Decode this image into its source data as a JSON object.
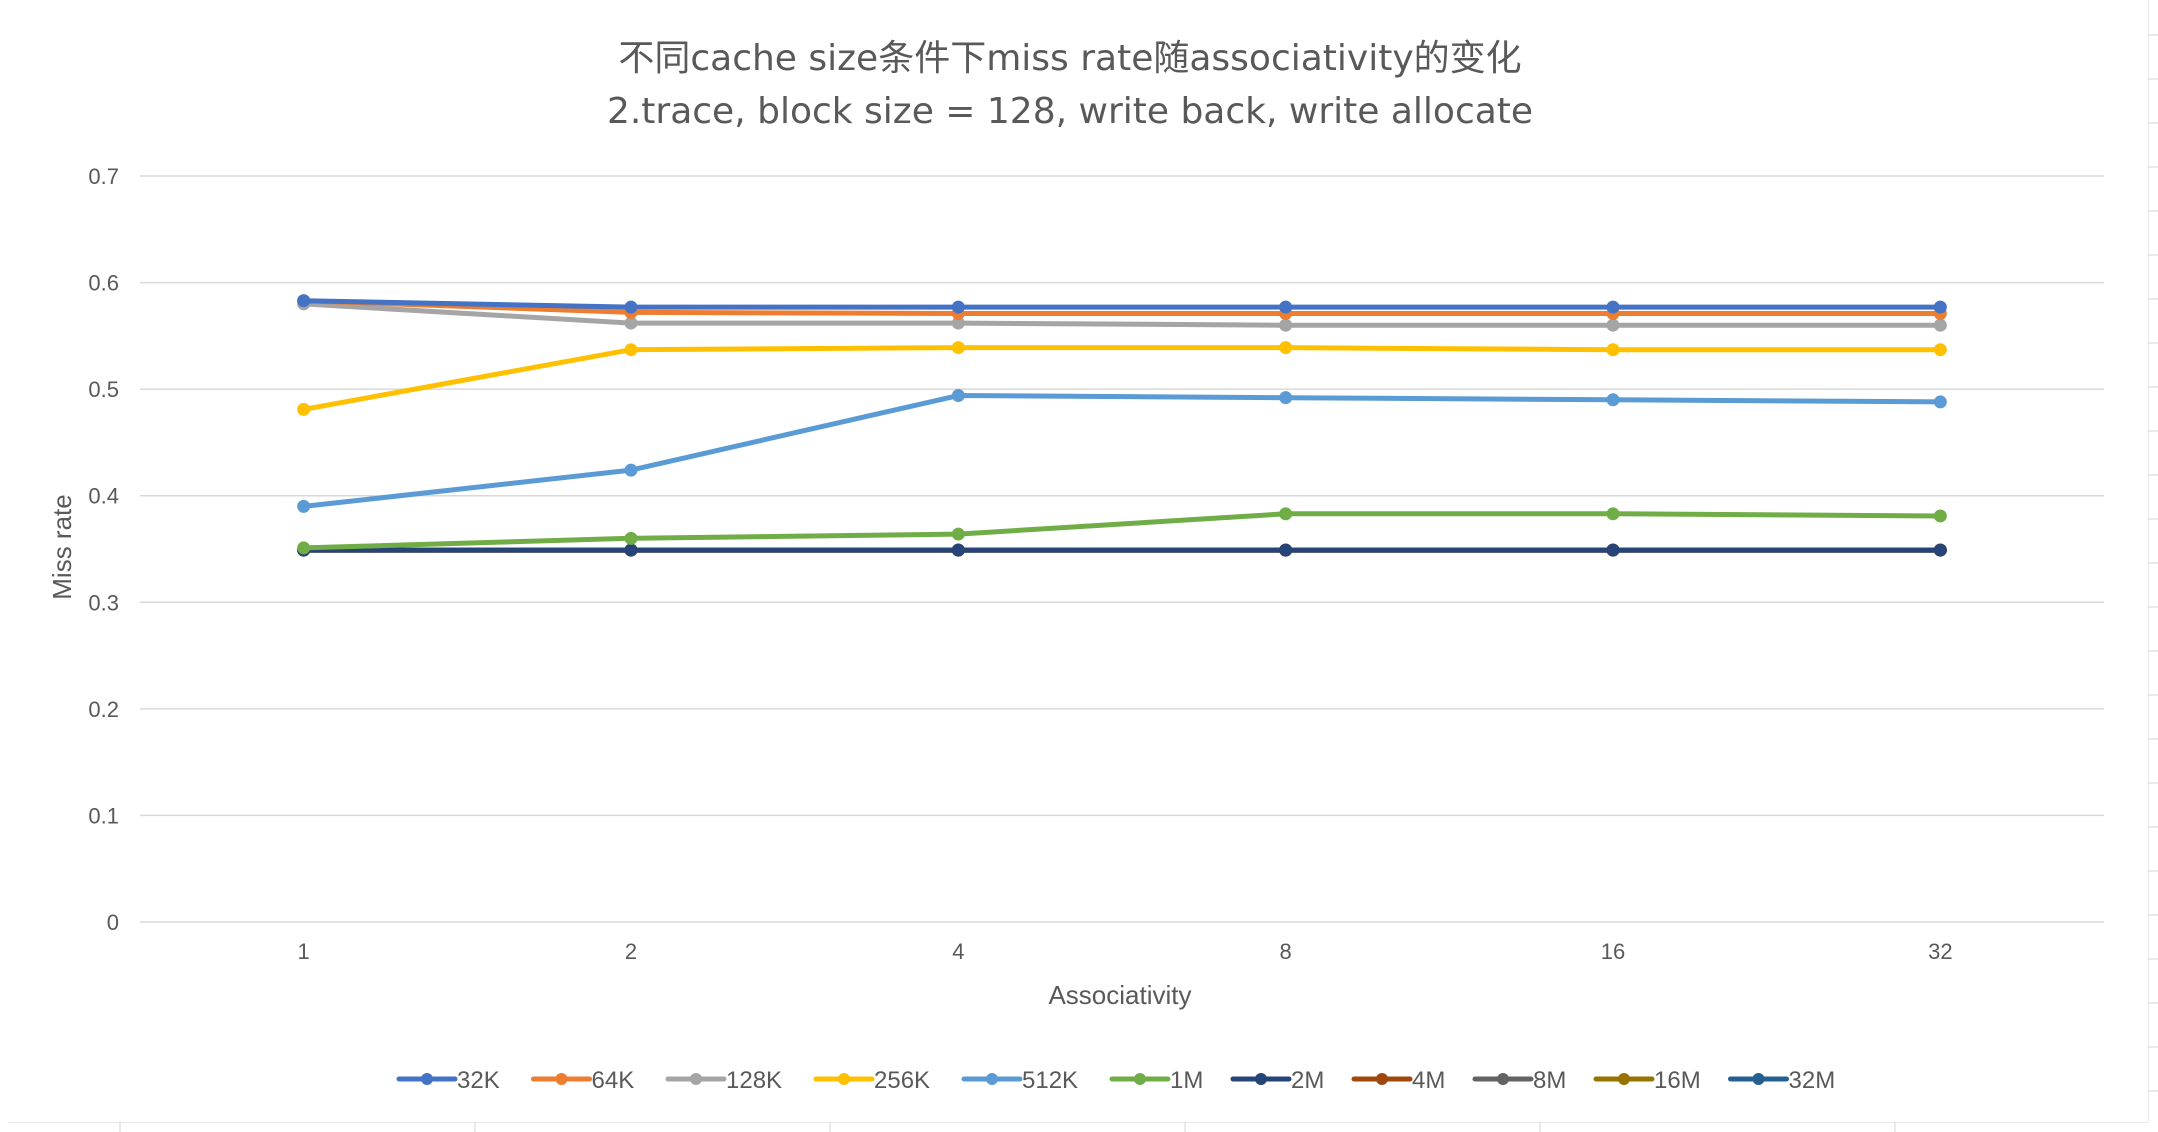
{
  "chart_data": {
    "type": "line",
    "title": "不同cache size条件下miss rate随associativity的变化",
    "subtitle": "2.trace, block size = 128, write back, write allocate",
    "xlabel": "Associativity",
    "ylabel": "Miss rate",
    "categories": [
      "1",
      "2",
      "4",
      "8",
      "16",
      "32"
    ],
    "ylim": [
      0,
      0.7
    ],
    "yticks": [
      "0",
      "0.1",
      "0.2",
      "0.3",
      "0.4",
      "0.5",
      "0.6",
      "0.7"
    ],
    "grid": true,
    "legend_position": "bottom",
    "series": [
      {
        "name": "32K",
        "color": "#4472C4",
        "values": [
          0.583,
          0.577,
          0.577,
          0.577,
          0.577,
          0.577
        ]
      },
      {
        "name": "64K",
        "color": "#ED7D31",
        "values": [
          0.583,
          0.572,
          0.571,
          0.571,
          0.571,
          0.571
        ]
      },
      {
        "name": "128K",
        "color": "#A5A5A5",
        "values": [
          0.58,
          0.562,
          0.562,
          0.56,
          0.56,
          0.56
        ]
      },
      {
        "name": "256K",
        "color": "#FFC000",
        "values": [
          0.481,
          0.537,
          0.539,
          0.539,
          0.537,
          0.537
        ]
      },
      {
        "name": "512K",
        "color": "#5B9BD5",
        "values": [
          0.39,
          0.424,
          0.494,
          0.492,
          0.49,
          0.488
        ]
      },
      {
        "name": "1M",
        "color": "#70AD47",
        "values": [
          0.351,
          0.36,
          0.364,
          0.383,
          0.383,
          0.381
        ]
      },
      {
        "name": "2M",
        "color": "#264478",
        "values": [
          0.349,
          0.349,
          0.349,
          0.349,
          0.349,
          0.349
        ]
      },
      {
        "name": "4M",
        "color": "#9E480E",
        "values": [
          0.349,
          0.349,
          0.349,
          0.349,
          0.349,
          0.349
        ]
      },
      {
        "name": "8M",
        "color": "#636363",
        "values": [
          0.349,
          0.349,
          0.349,
          0.349,
          0.349,
          0.349
        ]
      },
      {
        "name": "16M",
        "color": "#997300",
        "values": [
          0.349,
          0.349,
          0.349,
          0.349,
          0.349,
          0.349
        ]
      },
      {
        "name": "32M",
        "color": "#255E91",
        "values": [
          0.349,
          0.349,
          0.349,
          0.349,
          0.349,
          0.349
        ]
      }
    ]
  }
}
